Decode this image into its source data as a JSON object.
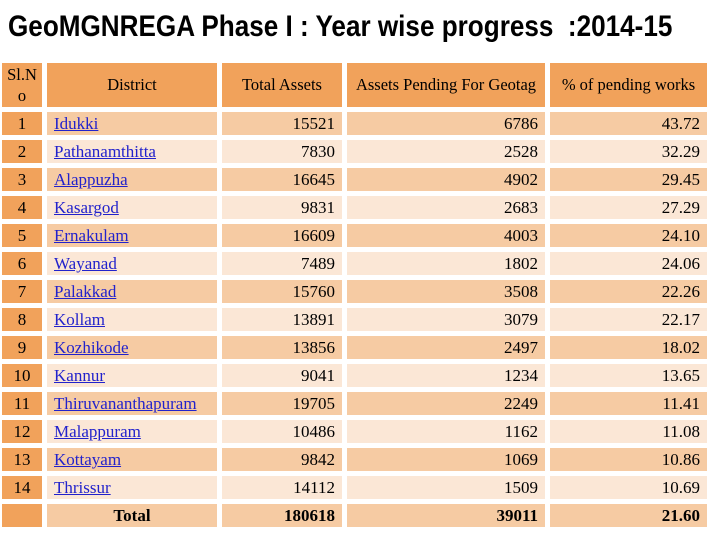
{
  "title": "GeoMGNREGA Phase I : Year wise progress  :2014-15",
  "table": {
    "columns": [
      "Sl.No",
      "District",
      "Total Assets",
      "Assets Pending For Geotag",
      "% of pending works"
    ],
    "rows": [
      {
        "sl": "1",
        "district": "Idukki",
        "total_assets": "15521",
        "pending": "6786",
        "pct_pending": "43.72"
      },
      {
        "sl": "2",
        "district": "Pathanamthitta",
        "total_assets": "7830",
        "pending": "2528",
        "pct_pending": "32.29"
      },
      {
        "sl": "3",
        "district": "Alappuzha",
        "total_assets": "16645",
        "pending": "4902",
        "pct_pending": "29.45"
      },
      {
        "sl": "4",
        "district": "Kasargod",
        "total_assets": "9831",
        "pending": "2683",
        "pct_pending": "27.29"
      },
      {
        "sl": "5",
        "district": "Ernakulam",
        "total_assets": "16609",
        "pending": "4003",
        "pct_pending": "24.10"
      },
      {
        "sl": "6",
        "district": "Wayanad",
        "total_assets": "7489",
        "pending": "1802",
        "pct_pending": "24.06"
      },
      {
        "sl": "7",
        "district": "Palakkad",
        "total_assets": "15760",
        "pending": "3508",
        "pct_pending": "22.26"
      },
      {
        "sl": "8",
        "district": "Kollam",
        "total_assets": "13891",
        "pending": "3079",
        "pct_pending": "22.17"
      },
      {
        "sl": "9",
        "district": "Kozhikode",
        "total_assets": "13856",
        "pending": "2497",
        "pct_pending": "18.02"
      },
      {
        "sl": "10",
        "district": "Kannur",
        "total_assets": "9041",
        "pending": "1234",
        "pct_pending": "13.65"
      },
      {
        "sl": "11",
        "district": "Thiruvananthapuram",
        "total_assets": "19705",
        "pending": "2249",
        "pct_pending": "11.41"
      },
      {
        "sl": "12",
        "district": "Malappuram",
        "total_assets": "10486",
        "pending": "1162",
        "pct_pending": "11.08"
      },
      {
        "sl": "13",
        "district": "Kottayam",
        "total_assets": "9842",
        "pending": "1069",
        "pct_pending": "10.86"
      },
      {
        "sl": "14",
        "district": "Thrissur",
        "total_assets": "14112",
        "pending": "1509",
        "pct_pending": "10.69"
      }
    ],
    "total_row": {
      "label": "Total",
      "total_assets": "180618",
      "pending": "39011",
      "pct_pending": "21.60"
    }
  },
  "colors": {
    "header_orange": "#F1A25B",
    "band_dark": "#F6CBA3",
    "band_light": "#FBE7D6",
    "link_blue": "#2222CC",
    "text": "#000000",
    "background": "#FFFFFF"
  }
}
